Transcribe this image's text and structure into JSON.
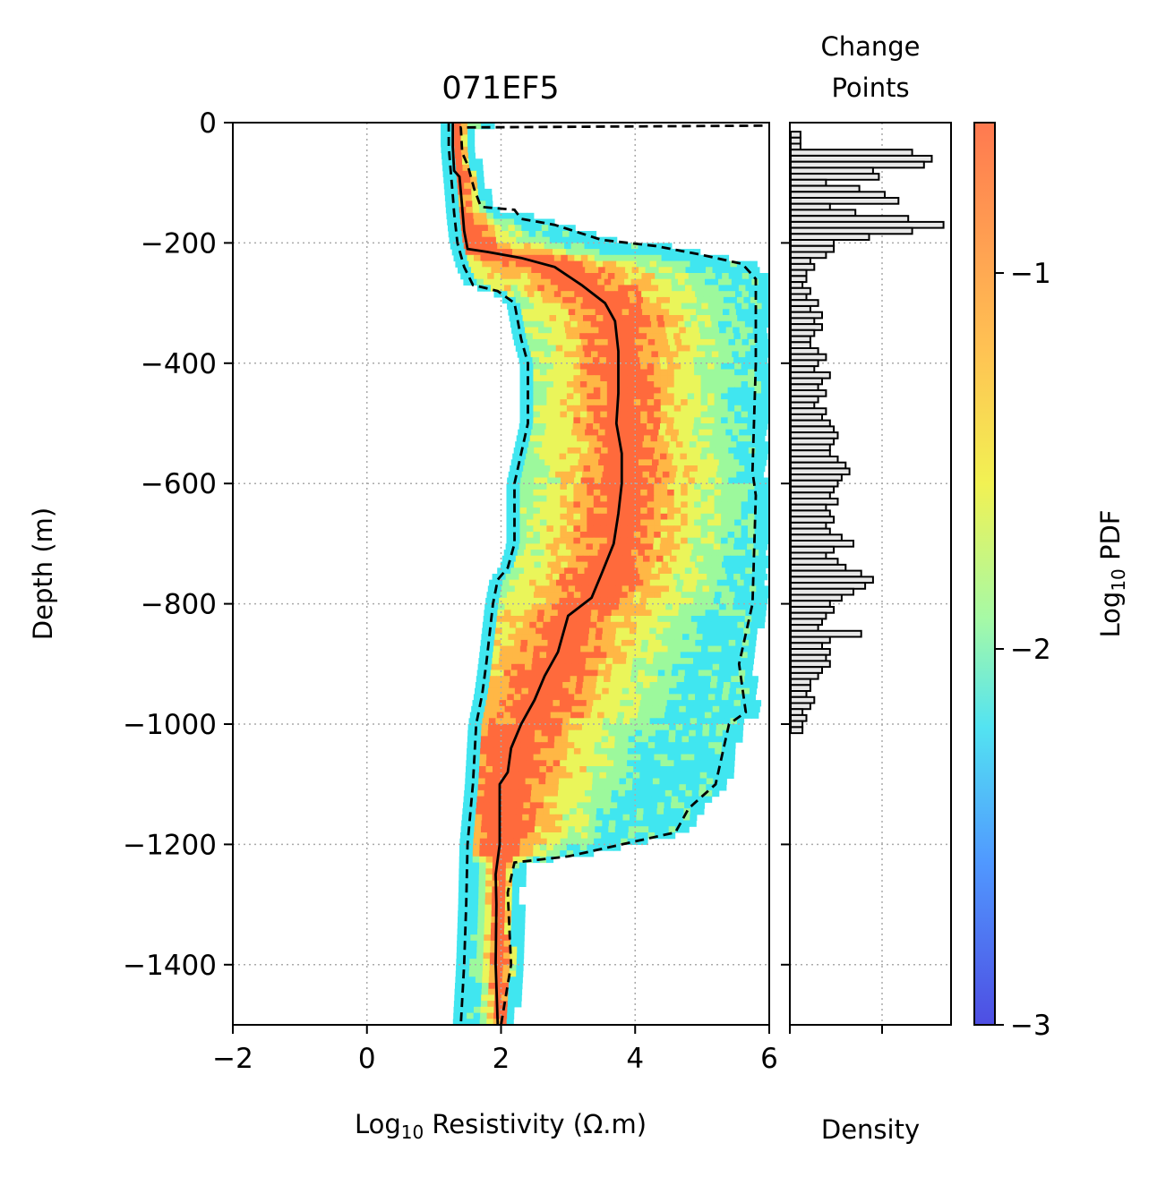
{
  "chart_data": [
    {
      "type": "heatmap",
      "title": "071EF5",
      "xlabel": "Log",
      "xlabel_sub": "10",
      "xlabel_rest": " Resistivity (Ω.m)",
      "ylabel": "Depth (m)",
      "xlim": [
        -2,
        6
      ],
      "ylim": [
        -1500,
        0
      ],
      "xticks": [
        -2,
        0,
        2,
        4,
        6
      ],
      "xtick_labels": [
        "−2",
        "0",
        "2",
        "4",
        "6"
      ],
      "yticks": [
        0,
        -200,
        -400,
        -600,
        -800,
        -1000,
        -1200,
        -1400
      ],
      "ytick_labels": [
        "0",
        "−200",
        "−400",
        "−600",
        "−800",
        "−1000",
        "−1200",
        "−1400"
      ],
      "grid": true,
      "colormap": "jet",
      "series": [
        {
          "line_style": "solid",
          "points": [
            [
              1.28,
              0
            ],
            [
              1.28,
              -40
            ],
            [
              1.3,
              -80
            ],
            [
              1.38,
              -90
            ],
            [
              1.42,
              -140
            ],
            [
              1.45,
              -180
            ],
            [
              1.5,
              -210
            ],
            [
              1.8,
              -215
            ],
            [
              2.3,
              -225
            ],
            [
              2.8,
              -240
            ],
            [
              3.2,
              -270
            ],
            [
              3.55,
              -300
            ],
            [
              3.7,
              -330
            ],
            [
              3.75,
              -380
            ],
            [
              3.75,
              -450
            ],
            [
              3.72,
              -500
            ],
            [
              3.8,
              -550
            ],
            [
              3.8,
              -600
            ],
            [
              3.75,
              -650
            ],
            [
              3.68,
              -700
            ],
            [
              3.5,
              -750
            ],
            [
              3.35,
              -790
            ],
            [
              3.0,
              -820
            ],
            [
              2.85,
              -880
            ],
            [
              2.65,
              -920
            ],
            [
              2.5,
              -960
            ],
            [
              2.3,
              -1000
            ],
            [
              2.15,
              -1040
            ],
            [
              2.1,
              -1080
            ],
            [
              1.98,
              -1100
            ],
            [
              1.98,
              -1200
            ],
            [
              1.92,
              -1250
            ],
            [
              1.93,
              -1300
            ],
            [
              1.92,
              -1400
            ],
            [
              1.95,
              -1500
            ]
          ]
        },
        {
          "line_style": "dashed",
          "points": [
            [
              1.22,
              0
            ],
            [
              1.22,
              -40
            ],
            [
              1.25,
              -80
            ],
            [
              1.28,
              -120
            ],
            [
              1.3,
              -150
            ],
            [
              1.35,
              -200
            ],
            [
              1.45,
              -240
            ],
            [
              1.58,
              -270
            ],
            [
              1.95,
              -280
            ],
            [
              2.2,
              -300
            ],
            [
              2.3,
              -360
            ],
            [
              2.4,
              -400
            ],
            [
              2.4,
              -500
            ],
            [
              2.28,
              -560
            ],
            [
              2.2,
              -600
            ],
            [
              2.2,
              -700
            ],
            [
              2.1,
              -740
            ],
            [
              1.95,
              -760
            ],
            [
              1.88,
              -800
            ],
            [
              1.78,
              -900
            ],
            [
              1.72,
              -950
            ],
            [
              1.63,
              -1000
            ],
            [
              1.58,
              -1100
            ],
            [
              1.5,
              -1200
            ],
            [
              1.48,
              -1300
            ],
            [
              1.45,
              -1400
            ],
            [
              1.4,
              -1500
            ]
          ]
        },
        {
          "line_style": "dashed",
          "points": [
            [
              5.9,
              -5
            ],
            [
              1.4,
              -8
            ],
            [
              1.42,
              -50
            ],
            [
              1.5,
              -70
            ],
            [
              1.6,
              -110
            ],
            [
              1.7,
              -140
            ],
            [
              2.2,
              -145
            ],
            [
              2.3,
              -160
            ],
            [
              2.8,
              -170
            ],
            [
              3.5,
              -195
            ],
            [
              4.3,
              -205
            ],
            [
              5.0,
              -220
            ],
            [
              5.6,
              -235
            ],
            [
              5.8,
              -260
            ],
            [
              5.8,
              -400
            ],
            [
              5.75,
              -580
            ],
            [
              5.8,
              -620
            ],
            [
              5.75,
              -800
            ],
            [
              5.55,
              -900
            ],
            [
              5.65,
              -980
            ],
            [
              5.4,
              -1000
            ],
            [
              5.2,
              -1100
            ],
            [
              4.8,
              -1140
            ],
            [
              4.6,
              -1180
            ],
            [
              3.0,
              -1220
            ],
            [
              2.2,
              -1230
            ],
            [
              2.1,
              -1280
            ],
            [
              2.15,
              -1400
            ],
            [
              2.0,
              -1500
            ]
          ]
        }
      ]
    },
    {
      "type": "bar",
      "title": "Change\nPoints",
      "title_lines": [
        "Change",
        "Points"
      ],
      "xlabel": "Density",
      "ylim": [
        -1500,
        0
      ],
      "grid": true,
      "depth_bin": 10,
      "values": [
        0.05,
        0.05,
        0.05,
        0.62,
        0.72,
        0.68,
        0.42,
        0.45,
        0.18,
        0.35,
        0.48,
        0.55,
        0.2,
        0.33,
        0.6,
        0.78,
        0.62,
        0.4,
        0.22,
        0.22,
        0.18,
        0.1,
        0.12,
        0.08,
        0.08,
        0.06,
        0.1,
        0.08,
        0.14,
        0.1,
        0.16,
        0.12,
        0.16,
        0.12,
        0.1,
        0.1,
        0.14,
        0.18,
        0.14,
        0.12,
        0.2,
        0.16,
        0.14,
        0.18,
        0.14,
        0.12,
        0.18,
        0.16,
        0.2,
        0.22,
        0.24,
        0.22,
        0.2,
        0.2,
        0.24,
        0.28,
        0.3,
        0.26,
        0.24,
        0.22,
        0.2,
        0.24,
        0.18,
        0.2,
        0.22,
        0.18,
        0.2,
        0.26,
        0.32,
        0.22,
        0.18,
        0.24,
        0.28,
        0.36,
        0.42,
        0.38,
        0.32,
        0.26,
        0.2,
        0.22,
        0.18,
        0.16,
        0.14,
        0.36,
        0.2,
        0.16,
        0.2,
        0.18,
        0.2,
        0.16,
        0.14,
        0.1,
        0.1,
        0.08,
        0.12,
        0.1,
        0.06,
        0.08,
        0.06,
        0.06
      ],
      "bar_color": "#e8e8e8",
      "edge_color": "#000000"
    },
    {
      "type": "colorbar",
      "label": "Log",
      "label_sub": "10",
      "label_rest": " PDF",
      "vmin": -3,
      "vmax": -0.6,
      "ticks": [
        -1,
        -2,
        -3
      ],
      "tick_labels": [
        "−1",
        "−2",
        "−3"
      ]
    }
  ]
}
